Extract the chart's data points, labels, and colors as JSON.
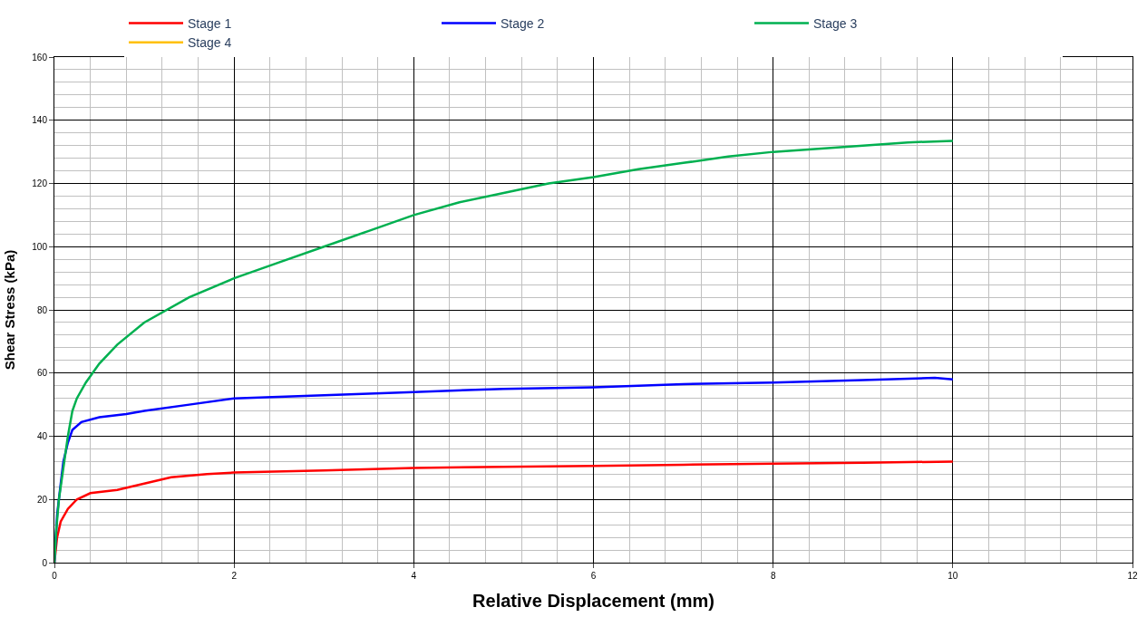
{
  "chart_data": {
    "type": "line",
    "xlabel": "Relative Displacement (mm)",
    "ylabel": "Shear Stress (kPa)",
    "xlim": [
      0,
      12
    ],
    "xticks": [
      0,
      2,
      4,
      6,
      8,
      10,
      12
    ],
    "ylim": [
      0,
      160
    ],
    "yticks": [
      0,
      20,
      40,
      60,
      80,
      100,
      120,
      140,
      160
    ],
    "grid": true,
    "legend": "top",
    "marker": "none",
    "line_style": "solid",
    "series": [
      {
        "name": "Stage 1",
        "color": "#ff0000",
        "x": [
          0,
          0.03,
          0.07,
          0.15,
          0.25,
          0.4,
          0.7,
          1,
          1.3,
          1.7,
          2,
          3,
          4,
          5,
          6,
          7,
          8,
          9,
          10
        ],
        "values": [
          0,
          8,
          13,
          17,
          20,
          22,
          23,
          25,
          27,
          28,
          28.5,
          29.2,
          30,
          30.3,
          30.6,
          31,
          31.3,
          31.6,
          32
        ]
      },
      {
        "name": "Stage 2",
        "color": "#0000ff",
        "x": [
          0,
          0.03,
          0.07,
          0.1,
          0.15,
          0.2,
          0.3,
          0.5,
          0.8,
          1,
          1.5,
          2,
          2.5,
          3,
          4,
          5,
          6,
          7,
          8,
          9,
          9.8,
          10
        ],
        "values": [
          0,
          15,
          25,
          32,
          38,
          42,
          44.5,
          46,
          47,
          48,
          50,
          52,
          52.5,
          53,
          54,
          55,
          55.5,
          56.5,
          57,
          57.8,
          58.5,
          58
        ]
      },
      {
        "name": "Stage 3",
        "color": "#00b050",
        "x": [
          0,
          0.02,
          0.05,
          0.1,
          0.15,
          0.2,
          0.25,
          0.35,
          0.5,
          0.7,
          1,
          1.5,
          2,
          2.5,
          3,
          3.5,
          4,
          4.5,
          5,
          5.5,
          6,
          6.5,
          7,
          7.5,
          8,
          8.5,
          9,
          9.5,
          10
        ],
        "values": [
          0,
          10,
          20,
          30,
          40,
          48,
          52,
          57,
          63,
          69,
          76,
          84,
          90,
          95,
          100,
          105,
          110,
          114,
          117,
          120,
          122,
          124.5,
          126.5,
          128.5,
          130,
          131,
          132,
          133,
          133.5
        ]
      },
      {
        "name": "Stage 4",
        "color": "#ffc000"
      }
    ]
  }
}
